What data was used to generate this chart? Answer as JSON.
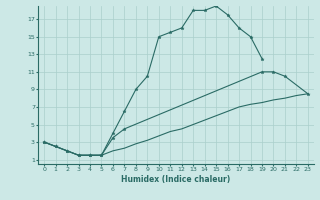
{
  "xlabel": "Humidex (Indice chaleur)",
  "bg_color": "#cce8e6",
  "grid_color": "#aacfcc",
  "line_color": "#2a6b65",
  "line1_x": [
    0,
    1,
    2,
    3,
    4,
    5,
    6,
    7,
    8,
    9,
    10,
    11,
    12,
    13,
    14,
    15,
    16,
    17,
    18,
    19
  ],
  "line1_y": [
    3,
    2.5,
    2,
    1.5,
    1.5,
    1.5,
    4.0,
    6.5,
    9.0,
    10.5,
    15.0,
    15.5,
    16.0,
    18.0,
    18.0,
    18.5,
    17.5,
    16.0,
    15.0,
    12.5
  ],
  "line2_x": [
    0,
    1,
    2,
    3,
    4,
    5,
    6,
    7,
    19,
    20,
    21,
    23
  ],
  "line2_y": [
    3,
    2.5,
    2,
    1.5,
    1.5,
    1.5,
    3.5,
    4.5,
    11.0,
    11.0,
    10.5,
    8.5
  ],
  "line3_x": [
    0,
    1,
    2,
    3,
    4,
    5,
    6,
    7,
    8,
    9,
    10,
    11,
    12,
    13,
    14,
    15,
    16,
    17,
    18,
    19,
    20,
    21,
    22,
    23
  ],
  "line3_y": [
    3,
    2.5,
    2,
    1.5,
    1.5,
    1.5,
    2.0,
    2.3,
    2.8,
    3.2,
    3.7,
    4.2,
    4.5,
    5.0,
    5.5,
    6.0,
    6.5,
    7.0,
    7.3,
    7.5,
    7.8,
    8.0,
    8.3,
    8.5
  ],
  "xlim": [
    -0.5,
    23.5
  ],
  "ylim": [
    0.5,
    18.5
  ],
  "yticks": [
    1,
    3,
    5,
    7,
    9,
    11,
    13,
    15,
    17
  ],
  "xticks": [
    0,
    1,
    2,
    3,
    4,
    5,
    6,
    7,
    8,
    9,
    10,
    11,
    12,
    13,
    14,
    15,
    16,
    17,
    18,
    19,
    20,
    21,
    22,
    23
  ]
}
